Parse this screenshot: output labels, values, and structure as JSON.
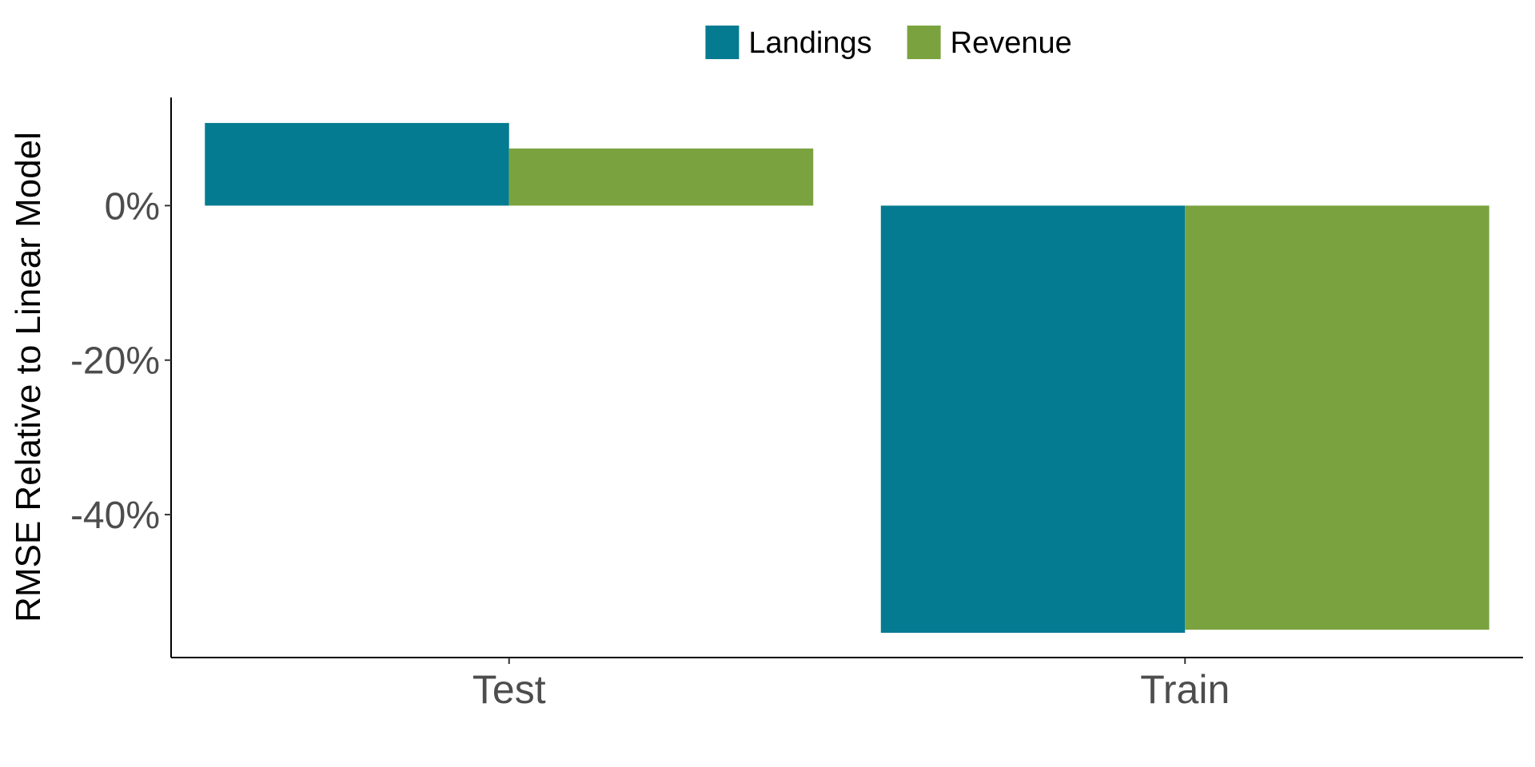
{
  "chart_data": {
    "type": "bar",
    "categories": [
      "Test",
      "Train"
    ],
    "series": [
      {
        "name": "Landings",
        "color": "#057B91",
        "values": [
          10.7,
          -55.3
        ]
      },
      {
        "name": "Revenue",
        "color": "#7AA33F",
        "values": [
          7.4,
          -54.9
        ]
      }
    ],
    "xlabel": "",
    "ylabel": "RMSE Relative to Linear Model",
    "y_ticks": [
      {
        "value": 0,
        "label": "0%"
      },
      {
        "value": -20,
        "label": "-20%"
      },
      {
        "value": -40,
        "label": "-40%"
      }
    ],
    "ylim": [
      -58.5,
      14
    ],
    "grid": false,
    "legend_position": "top"
  }
}
